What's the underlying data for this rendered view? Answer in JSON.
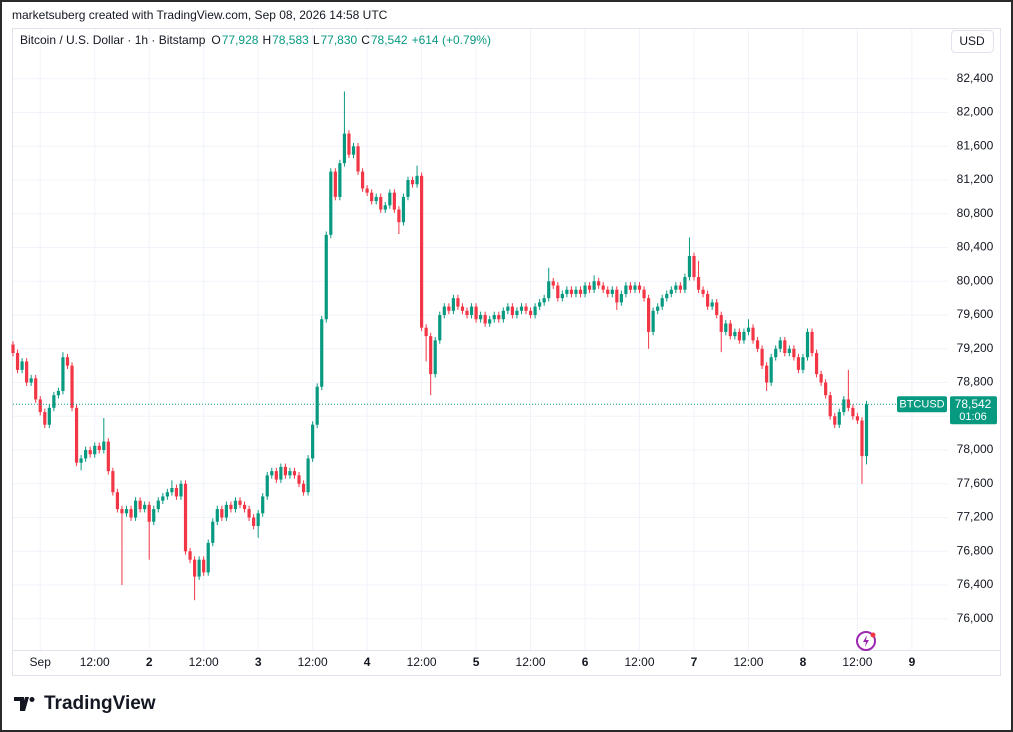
{
  "watermark": "marketsuberg created with TradingView.com, Sep 08, 2026 14:58 UTC",
  "legend": {
    "title": "Bitcoin / U.S. Dollar · 1h · Bitstamp",
    "fields": [
      {
        "key": "O",
        "value": "77,928"
      },
      {
        "key": "H",
        "value": "78,583"
      },
      {
        "key": "L",
        "value": "77,830"
      },
      {
        "key": "C",
        "value": "78,542"
      }
    ],
    "change": "+614 (+0.79%)"
  },
  "currency": "USD",
  "last_price_label": {
    "symbol": "BTCUSD",
    "price": "78,542",
    "countdown": "01:06"
  },
  "footer": {
    "brand": "TradingView"
  },
  "chart_data": {
    "type": "candlestick",
    "up_color": "#089981",
    "down_color": "#f23645",
    "grid": true,
    "ylim": [
      75630,
      82990
    ],
    "yticks": [
      {
        "value": 76000,
        "label": "76,000"
      },
      {
        "value": 76400,
        "label": "76,400"
      },
      {
        "value": 76800,
        "label": "76,800"
      },
      {
        "value": 77200,
        "label": "77,200"
      },
      {
        "value": 77600,
        "label": "77,600"
      },
      {
        "value": 78000,
        "label": "78,000"
      },
      {
        "value": 78400,
        "label": "78,400"
      },
      {
        "value": 78800,
        "label": "78,800"
      },
      {
        "value": 79200,
        "label": "79,200"
      },
      {
        "value": 79600,
        "label": "79,600"
      },
      {
        "value": 80000,
        "label": "80,000"
      },
      {
        "value": 80400,
        "label": "80,400"
      },
      {
        "value": 80800,
        "label": "80,800"
      },
      {
        "value": 81200,
        "label": "81,200"
      },
      {
        "value": 81600,
        "label": "81,600"
      },
      {
        "value": 82000,
        "label": "82,000"
      },
      {
        "value": 82400,
        "label": "82,400"
      }
    ],
    "categories": [
      null,
      null,
      null,
      null,
      null,
      null,
      "Sep",
      null,
      null,
      null,
      null,
      null,
      null,
      null,
      null,
      null,
      null,
      null,
      "12:00",
      null,
      null,
      null,
      null,
      null,
      null,
      null,
      null,
      null,
      null,
      null,
      "2",
      null,
      null,
      null,
      null,
      null,
      null,
      null,
      null,
      null,
      null,
      null,
      "12:00",
      null,
      null,
      null,
      null,
      null,
      null,
      null,
      null,
      null,
      null,
      null,
      "3",
      null,
      null,
      null,
      null,
      null,
      null,
      null,
      null,
      null,
      null,
      null,
      "12:00",
      null,
      null,
      null,
      null,
      null,
      null,
      null,
      null,
      null,
      null,
      null,
      "4",
      null,
      null,
      null,
      null,
      null,
      null,
      null,
      null,
      null,
      null,
      null,
      "12:00",
      null,
      null,
      null,
      null,
      null,
      null,
      null,
      null,
      null,
      null,
      null,
      "5",
      null,
      null,
      null,
      null,
      null,
      null,
      null,
      null,
      null,
      null,
      null,
      "12:00",
      null,
      null,
      null,
      null,
      null,
      null,
      null,
      null,
      null,
      null,
      null,
      "6",
      null,
      null,
      null,
      null,
      null,
      null,
      null,
      null,
      null,
      null,
      null,
      "12:00",
      null,
      null,
      null,
      null,
      null,
      null,
      null,
      null,
      null,
      null,
      null,
      "7",
      null,
      null,
      null,
      null,
      null,
      null,
      null,
      null,
      null,
      null,
      null,
      "12:00",
      null,
      null,
      null,
      null,
      null,
      null,
      null,
      null,
      null,
      null,
      null,
      "8",
      null,
      null,
      null,
      null,
      null,
      null,
      null,
      null,
      null,
      null,
      null,
      "12:00",
      null,
      null,
      null,
      null,
      null,
      null,
      null,
      null,
      null,
      null,
      null,
      "9"
    ],
    "open": [
      79250,
      79150,
      78950,
      79050,
      78800,
      78850,
      78600,
      78450,
      78300,
      78500,
      78650,
      78700,
      79100,
      79000,
      78500,
      77850,
      77900,
      78000,
      77950,
      78050,
      78000,
      78100,
      77750,
      77500,
      77300,
      77250,
      77300,
      77200,
      77400,
      77300,
      77350,
      77150,
      77300,
      77400,
      77450,
      77500,
      77550,
      77450,
      77600,
      76800,
      76700,
      76500,
      76700,
      76550,
      76900,
      77150,
      77300,
      77200,
      77350,
      77300,
      77400,
      77350,
      77300,
      77200,
      77100,
      77250,
      77450,
      77700,
      77750,
      77650,
      77800,
      77700,
      77750,
      77700,
      77600,
      77500,
      77900,
      78300,
      78750,
      79550,
      80550,
      81300,
      81000,
      81400,
      81750,
      81500,
      81600,
      81300,
      81100,
      81050,
      80950,
      81000,
      80850,
      80900,
      81050,
      80850,
      80700,
      81000,
      81200,
      81150,
      81250,
      79450,
      79350,
      78900,
      79300,
      79600,
      79700,
      79650,
      79800,
      79700,
      79650,
      79600,
      79700,
      79550,
      79600,
      79500,
      79550,
      79600,
      79550,
      79650,
      79700,
      79600,
      79650,
      79700,
      79650,
      79600,
      79700,
      79750,
      79800,
      80000,
      79950,
      79800,
      79850,
      79900,
      79850,
      79900,
      79850,
      79950,
      79900,
      80000,
      79950,
      79900,
      79850,
      79900,
      79750,
      79850,
      79950,
      79900,
      79950,
      79900,
      79800,
      79400,
      79650,
      79700,
      79800,
      79850,
      79900,
      79950,
      79900,
      80050,
      80300,
      80050,
      79900,
      79850,
      79700,
      79750,
      79600,
      79400,
      79500,
      79350,
      79400,
      79300,
      79400,
      79450,
      79300,
      79200,
      79000,
      78800,
      79100,
      79200,
      79300,
      79150,
      79200,
      79100,
      78950,
      79100,
      79400,
      79150,
      78900,
      78800,
      78650,
      78400,
      78300,
      78450,
      78600,
      78500,
      78400,
      78350,
      77928,
      null,
      null,
      null,
      null,
      null,
      null,
      null,
      null,
      null,
      null
    ],
    "high": [
      79290,
      79190,
      79090,
      79090,
      78890,
      78890,
      78640,
      78490,
      78540,
      78690,
      78740,
      79160,
      79140,
      79040,
      78540,
      77940,
      78040,
      78040,
      78090,
      78090,
      78380,
      78140,
      77790,
      77540,
      77340,
      77340,
      77340,
      77440,
      77440,
      77390,
      77390,
      77340,
      77440,
      77490,
      77540,
      77640,
      77590,
      77640,
      77640,
      76840,
      76740,
      76740,
      76740,
      76940,
      77190,
      77340,
      77340,
      77390,
      77390,
      77440,
      77440,
      77390,
      77340,
      77240,
      77290,
      77490,
      77740,
      77790,
      77790,
      77840,
      77840,
      77790,
      77790,
      77740,
      77640,
      77940,
      78340,
      78790,
      79590,
      80590,
      81340,
      81340,
      81440,
      82250,
      81790,
      81640,
      81640,
      81340,
      81140,
      81090,
      81040,
      81040,
      80940,
      81090,
      81090,
      80890,
      81040,
      81240,
      81240,
      81370,
      81290,
      79490,
      79390,
      79340,
      79640,
      79740,
      79740,
      79840,
      79840,
      79740,
      79690,
      79740,
      79740,
      79640,
      79640,
      79590,
      79640,
      79640,
      79690,
      79740,
      79740,
      79690,
      79740,
      79740,
      79690,
      79740,
      79790,
      79840,
      80160,
      80040,
      79990,
      79890,
      79940,
      79940,
      79940,
      79940,
      79990,
      79990,
      80070,
      80040,
      79990,
      79940,
      79940,
      79940,
      79890,
      79990,
      79990,
      79990,
      79990,
      79940,
      79840,
      79690,
      79740,
      79840,
      79890,
      79940,
      79990,
      79990,
      80090,
      80520,
      80340,
      80240,
      79940,
      79890,
      79790,
      79790,
      79640,
      79540,
      79540,
      79440,
      79440,
      79440,
      79550,
      79490,
      79340,
      79240,
      79040,
      79140,
      79240,
      79340,
      79340,
      79240,
      79240,
      79140,
      79140,
      79440,
      79440,
      79190,
      78940,
      78840,
      78690,
      78440,
      78490,
      78640,
      78950,
      78540,
      78440,
      78390,
      78583,
      null,
      null,
      null,
      null,
      null,
      null,
      null,
      null,
      null,
      null
    ],
    "low": [
      79110,
      78910,
      78910,
      78760,
      78760,
      78560,
      78410,
      78260,
      78260,
      78460,
      78610,
      78660,
      78960,
      78460,
      77810,
      77760,
      77860,
      77910,
      77910,
      77960,
      77960,
      77710,
      77460,
      77260,
      76400,
      77210,
      77160,
      77160,
      77260,
      77260,
      76700,
      77110,
      77260,
      77360,
      77410,
      77460,
      77410,
      77410,
      76760,
      76660,
      76220,
      76460,
      76510,
      76510,
      76860,
      77110,
      77160,
      77160,
      77260,
      77260,
      77310,
      77260,
      77160,
      77060,
      76960,
      77210,
      77410,
      77660,
      77610,
      77610,
      77660,
      77660,
      77660,
      77560,
      77460,
      77460,
      77860,
      78260,
      78710,
      79510,
      80510,
      80960,
      80960,
      81360,
      81460,
      81460,
      81260,
      81060,
      81010,
      80910,
      80910,
      80810,
      80810,
      80860,
      80810,
      80560,
      80660,
      80960,
      81110,
      81110,
      79410,
      79050,
      78650,
      78860,
      79260,
      79560,
      79610,
      79610,
      79660,
      79610,
      79560,
      79560,
      79510,
      79510,
      79460,
      79460,
      79510,
      79510,
      79510,
      79610,
      79560,
      79560,
      79610,
      79610,
      79560,
      79560,
      79660,
      79710,
      79760,
      79910,
      79760,
      79760,
      79810,
      79810,
      79810,
      79810,
      79810,
      79860,
      79860,
      79910,
      79860,
      79810,
      79810,
      79660,
      79710,
      79810,
      79860,
      79860,
      79860,
      79760,
      79200,
      79360,
      79610,
      79660,
      79760,
      79810,
      79860,
      79860,
      79860,
      80010,
      80010,
      79860,
      79810,
      79660,
      79660,
      79560,
      79160,
      79360,
      79310,
      79310,
      79260,
      79260,
      79360,
      79260,
      79160,
      78960,
      78700,
      78760,
      79060,
      79160,
      79110,
      79110,
      79060,
      78910,
      78910,
      79060,
      79110,
      78860,
      78760,
      78610,
      78360,
      78260,
      78260,
      78410,
      78460,
      78360,
      78310,
      77600,
      77830,
      null,
      null,
      null,
      null,
      null,
      null,
      null,
      null,
      null,
      null
    ],
    "close": [
      79150,
      78950,
      79050,
      78800,
      78850,
      78600,
      78450,
      78300,
      78500,
      78650,
      78700,
      79100,
      79000,
      78500,
      77850,
      77900,
      78000,
      77950,
      78050,
      78000,
      78100,
      77750,
      77500,
      77300,
      77250,
      77300,
      77200,
      77400,
      77300,
      77350,
      77150,
      77300,
      77400,
      77450,
      77500,
      77550,
      77450,
      77600,
      76800,
      76700,
      76500,
      76700,
      76550,
      76900,
      77150,
      77300,
      77200,
      77350,
      77300,
      77400,
      77350,
      77300,
      77200,
      77100,
      77250,
      77450,
      77700,
      77750,
      77650,
      77800,
      77700,
      77750,
      77700,
      77600,
      77500,
      77900,
      78300,
      78750,
      79550,
      80550,
      81300,
      81000,
      81400,
      81750,
      81500,
      81600,
      81300,
      81100,
      81050,
      80950,
      81000,
      80850,
      80900,
      81050,
      80850,
      80700,
      81000,
      81200,
      81150,
      81250,
      79450,
      79350,
      78900,
      79300,
      79600,
      79700,
      79650,
      79800,
      79700,
      79650,
      79600,
      79700,
      79550,
      79600,
      79500,
      79550,
      79600,
      79550,
      79650,
      79700,
      79600,
      79650,
      79700,
      79650,
      79600,
      79700,
      79750,
      79800,
      80000,
      79950,
      79800,
      79850,
      79900,
      79850,
      79900,
      79850,
      79950,
      79900,
      80000,
      79950,
      79900,
      79850,
      79900,
      79750,
      79850,
      79950,
      79900,
      79950,
      79900,
      79800,
      79400,
      79650,
      79700,
      79800,
      79850,
      79900,
      79950,
      79900,
      80050,
      80300,
      80050,
      79900,
      79850,
      79700,
      79750,
      79600,
      79400,
      79500,
      79350,
      79400,
      79300,
      79400,
      79450,
      79300,
      79200,
      79000,
      78800,
      79100,
      79200,
      79300,
      79150,
      79200,
      79100,
      78950,
      79100,
      79400,
      79150,
      78900,
      78800,
      78650,
      78400,
      78300,
      78450,
      78600,
      78500,
      78400,
      78350,
      77928,
      78542,
      null,
      null,
      null,
      null,
      null,
      null,
      null,
      null,
      null,
      null
    ]
  }
}
